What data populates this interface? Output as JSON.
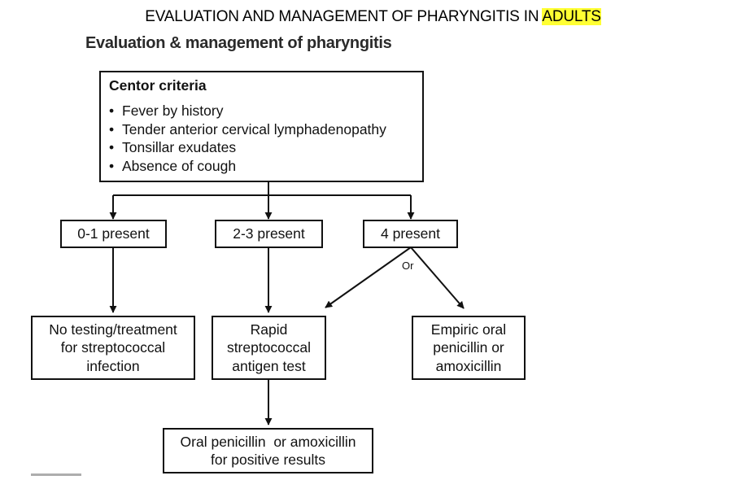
{
  "header": {
    "title_prefix": "EVALUATION AND MANAGEMENT OF PHARYNGITIS IN ",
    "title_highlight": "ADULTS",
    "highlight_color": "#ffff33"
  },
  "subtitle": "Evaluation & management of pharyngitis",
  "centor": {
    "title": "Centor criteria",
    "bullet": "•",
    "items": [
      "Fever by history",
      "Tender anterior cervical lymphadenopathy",
      "Tonsillar exudates",
      "Absence of cough"
    ]
  },
  "branches": {
    "b01": "0-1 present",
    "b23": "2-3 present",
    "b4": "4 present"
  },
  "or_label": "Or",
  "outcomes": {
    "no_testing": [
      "No testing/treatment",
      "for streptococcal",
      "infection"
    ],
    "rapid_test": [
      "Rapid",
      "streptococcal",
      "antigen test"
    ],
    "empiric": [
      "Empiric oral",
      "penicillin or",
      "amoxicillin"
    ],
    "oral_positive": [
      "Oral penicillin  or amoxicillin",
      "for positive results"
    ]
  }
}
